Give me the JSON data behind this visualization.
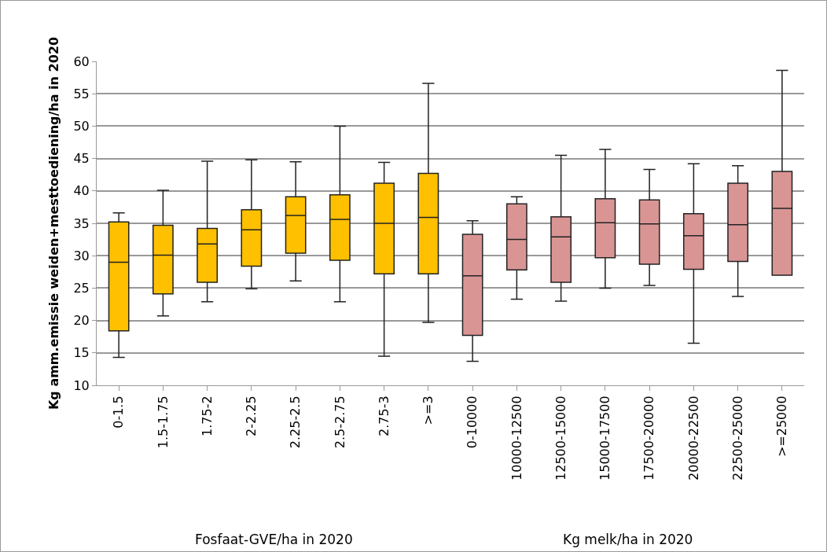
{
  "chart_data": {
    "type": "box",
    "ylabel": "Kg amm.emissie weiden+mesttoediening/ha in 2020",
    "categories": [
      "0-1.5",
      "1.5-1.75",
      "1.75-2",
      "2-2.25",
      "2.25-2.5",
      "2.5-2.75",
      "2.75-3",
      ">=3",
      "0-10000",
      "10000-12500",
      "12500-15000",
      "15000-17500",
      "17500-20000",
      "20000-22500",
      "22500-25000",
      ">=25000"
    ],
    "series": [
      {
        "color": "#ffc000",
        "boxes": [
          {
            "low": 14.3,
            "q1": 18.4,
            "median": 29,
            "q3": 35.2,
            "high": 36.6
          },
          {
            "low": 20.7,
            "q1": 24.1,
            "median": 30.1,
            "q3": 34.7,
            "high": 40.1
          },
          {
            "low": 22.9,
            "q1": 25.9,
            "median": 31.8,
            "q3": 34.2,
            "high": 44.6
          },
          {
            "low": 24.9,
            "q1": 28.4,
            "median": 34,
            "q3": 37.1,
            "high": 44.8
          },
          {
            "low": 26.1,
            "q1": 30.4,
            "median": 36.2,
            "q3": 39.1,
            "high": 44.5
          },
          {
            "low": 22.9,
            "q1": 29.3,
            "median": 35.6,
            "q3": 39.4,
            "high": 50
          },
          {
            "low": 14.5,
            "q1": 27.2,
            "median": 35,
            "q3": 41.2,
            "high": 44.4
          },
          {
            "low": 19.7,
            "q1": 27.2,
            "median": 35.9,
            "q3": 42.7,
            "high": 56.6
          },
          null,
          null,
          null,
          null,
          null,
          null,
          null,
          null
        ]
      },
      {
        "color": "#d99594",
        "boxes": [
          null,
          null,
          null,
          null,
          null,
          null,
          null,
          null,
          {
            "low": 13.7,
            "q1": 17.7,
            "median": 26.9,
            "q3": 33.3,
            "high": 35.4
          },
          {
            "low": 23.3,
            "q1": 27.8,
            "median": 32.5,
            "q3": 38,
            "high": 39.1
          },
          {
            "low": 23,
            "q1": 25.9,
            "median": 32.9,
            "q3": 36,
            "high": 45.5
          },
          {
            "low": 25,
            "q1": 29.7,
            "median": 35.1,
            "q3": 38.8,
            "high": 46.4
          },
          {
            "low": 25.4,
            "q1": 28.7,
            "median": 34.9,
            "q3": 38.6,
            "high": 43.3
          },
          {
            "low": 16.5,
            "q1": 27.9,
            "median": 33.1,
            "q3": 36.5,
            "high": 44.2
          },
          {
            "low": 23.7,
            "q1": 29.1,
            "median": 34.8,
            "q3": 41.2,
            "high": 43.9
          },
          {
            "low": 27,
            "q1": 27,
            "median": 37.3,
            "q3": 43,
            "high": 58.6
          }
        ]
      }
    ],
    "annotations": [
      "Fosfaat-GVE/ha in 2020",
      "Kg melk/ha in 2020"
    ],
    "ylim": [
      10,
      60
    ],
    "yticks": [
      10,
      15,
      20,
      25,
      30,
      35,
      40,
      45,
      50,
      55,
      60
    ],
    "grid": "y",
    "legend": false
  }
}
